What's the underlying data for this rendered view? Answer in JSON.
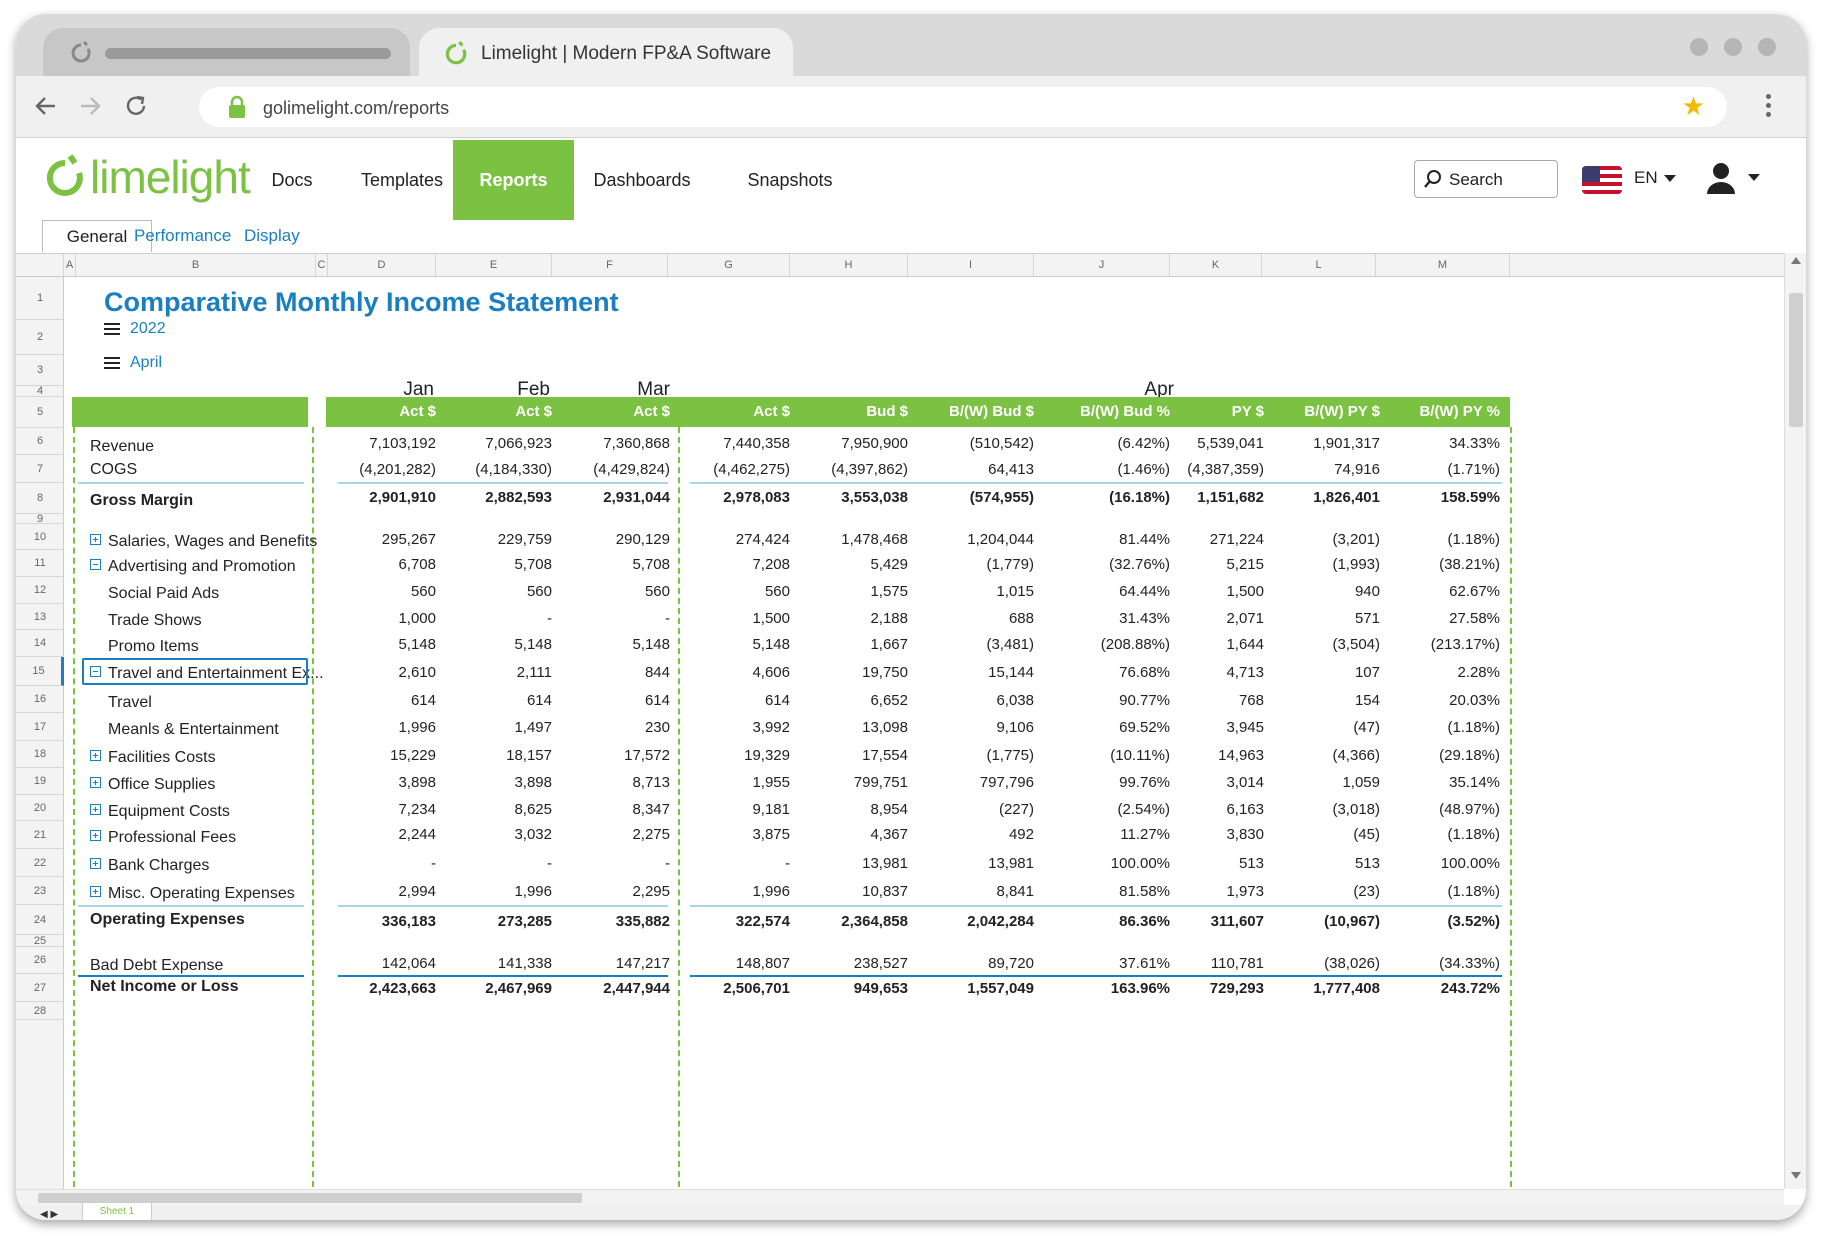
{
  "browser": {
    "tab_title": "Limelight | Modern FP&A Software",
    "url": "golimelight.com/reports"
  },
  "app": {
    "logo_text": "limelight",
    "nav": [
      "Docs",
      "Templates",
      "Reports",
      "Dashboards",
      "Snapshots"
    ],
    "active_nav": "Reports",
    "search_label": "Search",
    "language": "EN"
  },
  "subtabs": [
    "General",
    "Performance",
    "Display"
  ],
  "active_subtab": "General",
  "column_letters": [
    "A",
    "B",
    "C",
    "D",
    "E",
    "F",
    "G",
    "H",
    "I",
    "J",
    "K",
    "L",
    "M"
  ],
  "row_numbers": [
    "1",
    "2",
    "3",
    "4",
    "5",
    "6",
    "7",
    "8",
    "9",
    "10",
    "11",
    "12",
    "13",
    "14",
    "15",
    "16",
    "17",
    "18",
    "19",
    "20",
    "21",
    "22",
    "23",
    "24",
    "25",
    "26",
    "27",
    "28"
  ],
  "selected_row": "15",
  "report": {
    "title": "Comparative Monthly Income Statement",
    "year": "2022",
    "month": "April",
    "months": [
      "Jan",
      "Feb",
      "Mar",
      "Apr"
    ],
    "columns": [
      "Act $",
      "Act $",
      "Act $",
      "Act $",
      "Bud $",
      "B/(W) Bud $",
      "B/(W) Bud %",
      "PY $",
      "B/(W) PY $",
      "B/(W) PY %"
    ],
    "rows": [
      {
        "label": "Revenue",
        "values": [
          "7,103,192",
          "7,066,923",
          "7,360,868",
          "7,440,358",
          "7,950,900",
          "(510,542)",
          "(6.42%)",
          "5,539,041",
          "1,901,317",
          "34.33%"
        ]
      },
      {
        "label": "COGS",
        "values": [
          "(4,201,282)",
          "(4,184,330)",
          "(4,429,824)",
          "(4,462,275)",
          "(4,397,862)",
          "64,413",
          "(1.46%)",
          "(4,387,359)",
          "74,916",
          "(1.71%)"
        ]
      },
      {
        "label": "Gross Margin",
        "bold": true,
        "values": [
          "2,901,910",
          "2,882,593",
          "2,931,044",
          "2,978,083",
          "3,553,038",
          "(574,955)",
          "(16.18%)",
          "1,151,682",
          "1,826,401",
          "158.59%"
        ]
      },
      {
        "label": "Salaries, Wages and Benefits",
        "toggle": "plus",
        "values": [
          "295,267",
          "229,759",
          "290,129",
          "274,424",
          "1,478,468",
          "1,204,044",
          "81.44%",
          "271,224",
          "(3,201)",
          "(1.18%)"
        ]
      },
      {
        "label": "Advertising and Promotion",
        "toggle": "minus",
        "values": [
          "6,708",
          "5,708",
          "5,708",
          "7,208",
          "5,429",
          "(1,779)",
          "(32.76%)",
          "5,215",
          "(1,993)",
          "(38.21%)"
        ]
      },
      {
        "label": "Social Paid Ads",
        "indent": true,
        "values": [
          "560",
          "560",
          "560",
          "560",
          "1,575",
          "1,015",
          "64.44%",
          "1,500",
          "940",
          "62.67%"
        ]
      },
      {
        "label": "Trade Shows",
        "indent": true,
        "values": [
          "1,000",
          "-",
          "-",
          "1,500",
          "2,188",
          "688",
          "31.43%",
          "2,071",
          "571",
          "27.58%"
        ]
      },
      {
        "label": "Promo Items",
        "indent": true,
        "values": [
          "5,148",
          "5,148",
          "5,148",
          "5,148",
          "1,667",
          "(3,481)",
          "(208.88%)",
          "1,644",
          "(3,504)",
          "(213.17%)"
        ]
      },
      {
        "label": "Travel and Entertainment Ex...",
        "toggle": "minus",
        "selected": true,
        "values": [
          "2,610",
          "2,111",
          "844",
          "4,606",
          "19,750",
          "15,144",
          "76.68%",
          "4,713",
          "107",
          "2.28%"
        ]
      },
      {
        "label": "Travel",
        "indent": true,
        "values": [
          "614",
          "614",
          "614",
          "614",
          "6,652",
          "6,038",
          "90.77%",
          "768",
          "154",
          "20.03%"
        ]
      },
      {
        "label": "Meanls & Entertainment",
        "indent": true,
        "values": [
          "1,996",
          "1,497",
          "230",
          "3,992",
          "13,098",
          "9,106",
          "69.52%",
          "3,945",
          "(47)",
          "(1.18%)"
        ]
      },
      {
        "label": "Facilities Costs",
        "toggle": "plus",
        "values": [
          "15,229",
          "18,157",
          "17,572",
          "19,329",
          "17,554",
          "(1,775)",
          "(10.11%)",
          "14,963",
          "(4,366)",
          "(29.18%)"
        ]
      },
      {
        "label": "Office Supplies",
        "toggle": "plus",
        "values": [
          "3,898",
          "3,898",
          "8,713",
          "1,955",
          "799,751",
          "797,796",
          "99.76%",
          "3,014",
          "1,059",
          "35.14%"
        ]
      },
      {
        "label": "Equipment Costs",
        "toggle": "plus",
        "values": [
          "7,234",
          "8,625",
          "8,347",
          "9,181",
          "8,954",
          "(227)",
          "(2.54%)",
          "6,163",
          "(3,018)",
          "(48.97%)"
        ]
      },
      {
        "label": "Professional Fees",
        "toggle": "plus",
        "values": [
          "2,244",
          "3,032",
          "2,275",
          "3,875",
          "4,367",
          "492",
          "11.27%",
          "3,830",
          "(45)",
          "(1.18%)"
        ]
      },
      {
        "label": "Bank Charges",
        "toggle": "plus",
        "values": [
          "-",
          "-",
          "-",
          "-",
          "13,981",
          "13,981",
          "100.00%",
          "513",
          "513",
          "100.00%"
        ]
      },
      {
        "label": "Misc. Operating Expenses",
        "toggle": "plus",
        "values": [
          "2,994",
          "1,996",
          "2,295",
          "1,996",
          "10,837",
          "8,841",
          "81.58%",
          "1,973",
          "(23)",
          "(1.18%)"
        ]
      },
      {
        "label": "Operating Expenses",
        "bold": true,
        "values": [
          "336,183",
          "273,285",
          "335,882",
          "322,574",
          "2,364,858",
          "2,042,284",
          "86.36%",
          "311,607",
          "(10,967)",
          "(3.52%)"
        ]
      },
      {
        "label": "Bad Debt Expense",
        "values": [
          "142,064",
          "141,338",
          "147,217",
          "148,807",
          "238,527",
          "89,720",
          "37.61%",
          "110,781",
          "(38,026)",
          "(34.33%)"
        ]
      },
      {
        "label": "Net Income or Loss",
        "bold": true,
        "values": [
          "2,423,663",
          "2,467,969",
          "2,447,944",
          "2,506,701",
          "949,653",
          "1,557,049",
          "163.96%",
          "729,293",
          "1,777,408",
          "243.72%"
        ]
      }
    ]
  },
  "sheet_tab": "Sheet 1",
  "colors": {
    "accent_green": "#7cc242",
    "accent_blue": "#1a7fc1"
  }
}
